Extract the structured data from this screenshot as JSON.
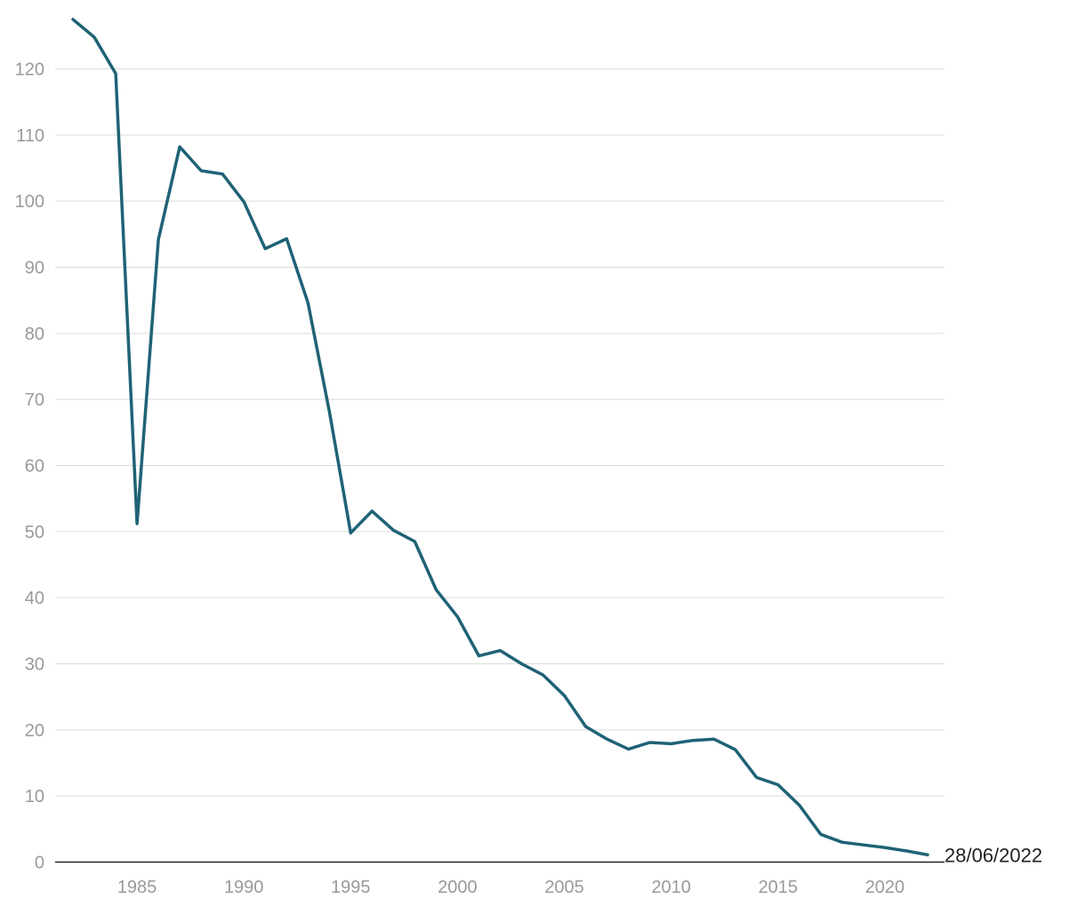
{
  "chart_data": {
    "type": "line",
    "title": "",
    "xlabel": "",
    "ylabel": "",
    "xlim": [
      1982,
      2022
    ],
    "ylim": [
      0,
      120
    ],
    "yticks": [
      0,
      10,
      20,
      30,
      40,
      50,
      60,
      70,
      80,
      90,
      100,
      110,
      120
    ],
    "xticks": [
      1985,
      1990,
      1995,
      2000,
      2005,
      2010,
      2015,
      2020
    ],
    "grid": true,
    "legend": "none",
    "end_label": "28/06/2022",
    "line_color": "#1f6276",
    "series": [
      {
        "x": [
          1982,
          1983,
          1984,
          1985,
          1986,
          1987,
          1988,
          1989,
          1990,
          1991,
          1992,
          1993,
          1994,
          1995,
          1996,
          1997,
          1998,
          1999,
          2000,
          2001,
          2002,
          2003,
          2004,
          2005,
          2006,
          2007,
          2008,
          2009,
          2010,
          2011,
          2012,
          2013,
          2014,
          2015,
          2016,
          2017,
          2018,
          2019,
          2020,
          2021,
          2022
        ],
        "values": [
          127.5,
          124.8,
          119.3,
          51.2,
          94.2,
          108.2,
          104.6,
          104.1,
          99.9,
          92.8,
          94.3,
          84.6,
          68.2,
          49.8,
          53.1,
          50.2,
          48.5,
          41.2,
          37.1,
          31.2,
          32.0,
          30.0,
          28.3,
          25.2,
          20.5,
          18.6,
          17.1,
          18.1,
          17.9,
          18.4,
          18.6,
          17.0,
          12.8,
          11.7,
          8.6,
          4.2,
          3.0,
          2.6,
          2.2,
          1.7,
          1.1
        ]
      }
    ]
  }
}
